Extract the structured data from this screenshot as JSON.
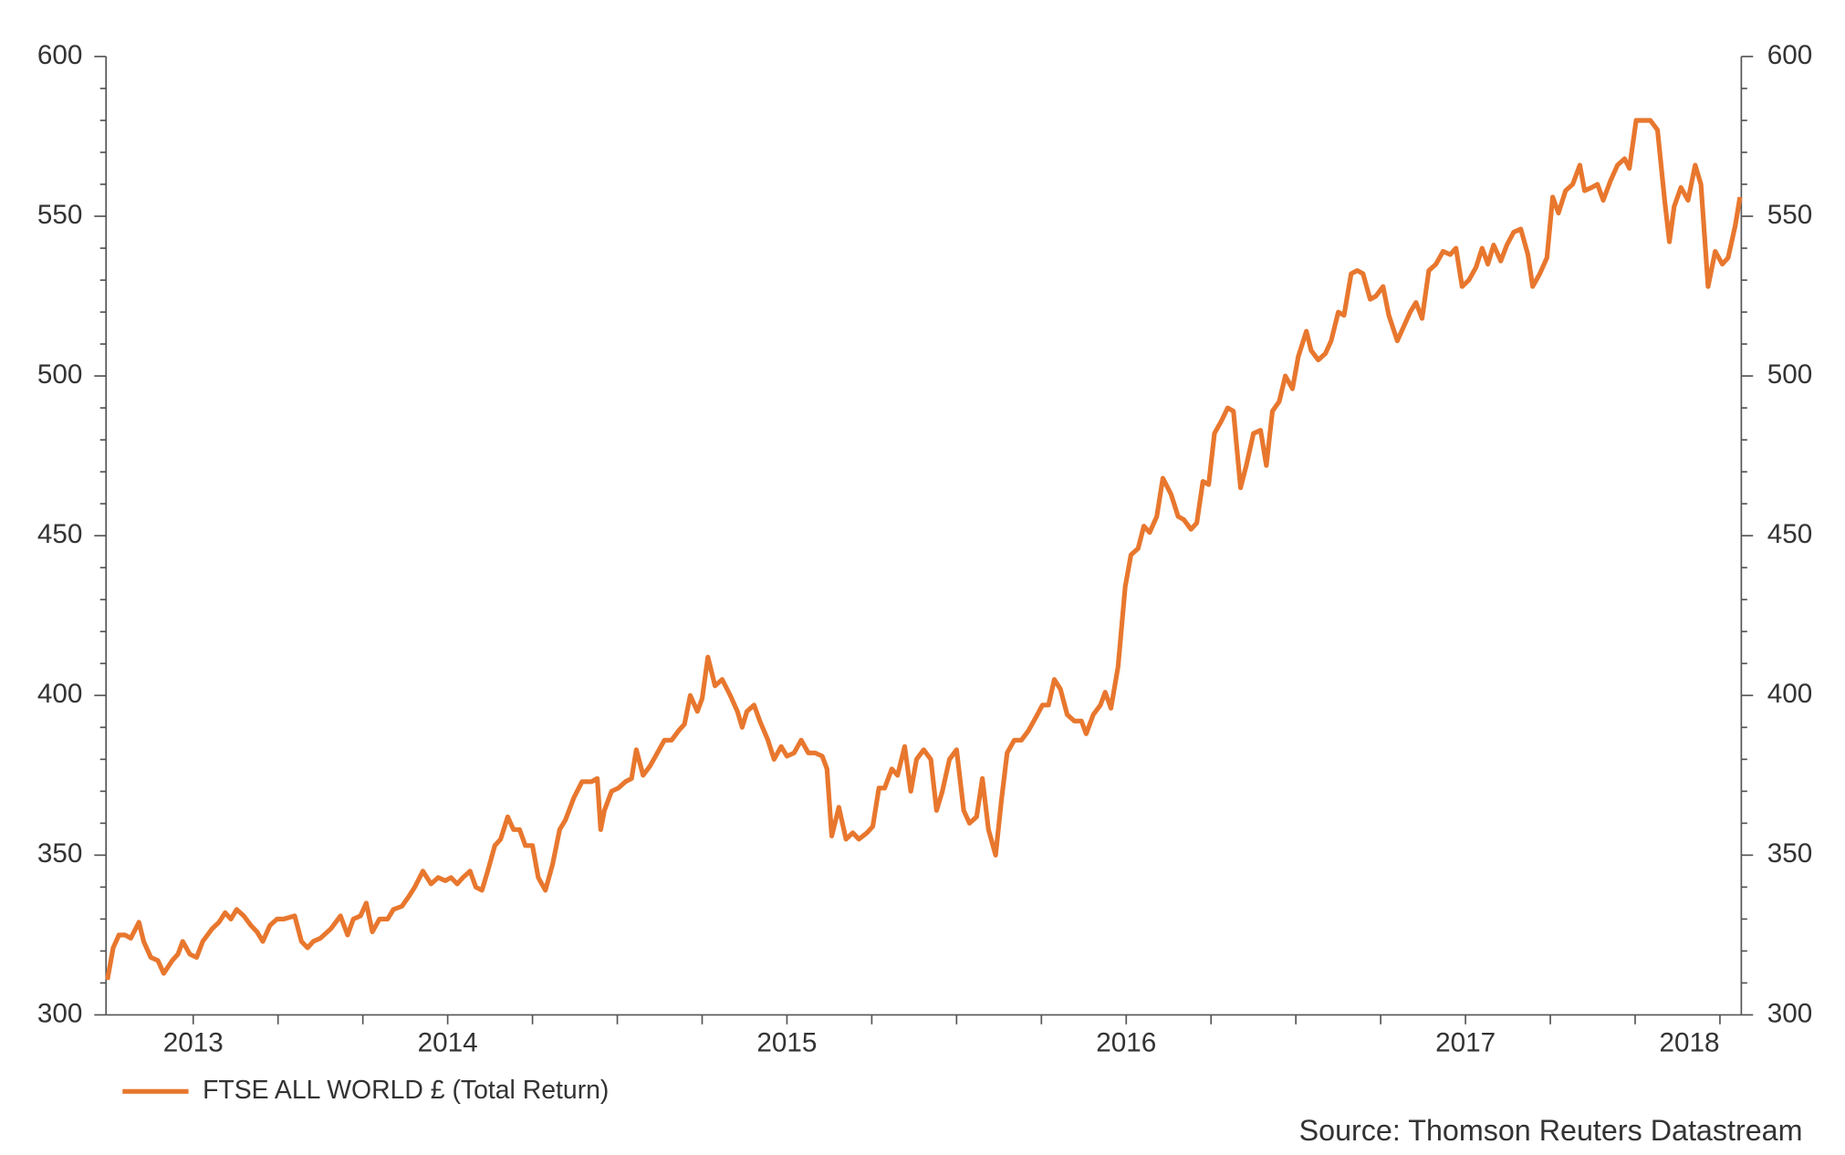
{
  "chart_data": {
    "type": "line",
    "x": [
      2013.497,
      2013.514,
      2013.531,
      2013.549,
      2013.566,
      2013.59,
      2013.604,
      2013.625,
      2013.646,
      2013.663,
      2013.688,
      2013.705,
      2013.719,
      2013.74,
      2013.76,
      2013.778,
      2013.806,
      2013.826,
      2013.844,
      2013.861,
      2013.878,
      2013.899,
      2013.92,
      2013.938,
      2013.955,
      2013.976,
      2013.997,
      2014.017,
      2014.049,
      2014.069,
      2014.087,
      2014.104,
      2014.125,
      2014.156,
      2014.184,
      2014.205,
      2014.222,
      2014.243,
      2014.26,
      2014.278,
      2014.299,
      2014.323,
      2014.34,
      2014.365,
      2014.385,
      2014.403,
      2014.427,
      2014.451,
      2014.472,
      2014.493,
      2014.51,
      2014.528,
      2014.545,
      2014.566,
      2014.583,
      2014.601,
      2014.618,
      2014.639,
      2014.656,
      2014.677,
      2014.694,
      2014.712,
      2014.729,
      2014.75,
      2014.767,
      2014.788,
      2014.809,
      2014.83,
      2014.847,
      2014.872,
      2014.896,
      2014.924,
      2014.941,
      2014.951,
      2014.962,
      2014.983,
      2015.003,
      2015.024,
      2015.042,
      2015.056,
      2015.076,
      2015.097,
      2015.118,
      2015.139,
      2015.16,
      2015.181,
      2015.198,
      2015.215,
      2015.236,
      2015.25,
      2015.267,
      2015.288,
      2015.309,
      2015.333,
      2015.354,
      2015.368,
      2015.382,
      2015.403,
      2015.42,
      2015.444,
      2015.462,
      2015.483,
      2015.5,
      2015.521,
      2015.542,
      2015.563,
      2015.583,
      2015.604,
      2015.618,
      2015.632,
      2015.653,
      2015.674,
      2015.694,
      2015.712,
      2015.736,
      2015.753,
      2015.771,
      2015.788,
      2015.809,
      2015.826,
      2015.847,
      2015.865,
      2015.882,
      2015.903,
      2015.924,
      2015.941,
      2015.958,
      2015.979,
      2016.0,
      2016.021,
      2016.038,
      2016.059,
      2016.076,
      2016.094,
      2016.115,
      2016.132,
      2016.149,
      2016.17,
      2016.191,
      2016.212,
      2016.233,
      2016.253,
      2016.271,
      2016.288,
      2016.306,
      2016.326,
      2016.347,
      2016.368,
      2016.382,
      2016.403,
      2016.424,
      2016.438,
      2016.455,
      2016.476,
      2016.497,
      2016.514,
      2016.535,
      2016.552,
      2016.569,
      2016.59,
      2016.608,
      2016.632,
      2016.653,
      2016.67,
      2016.691,
      2016.708,
      2016.726,
      2016.743,
      2016.76,
      2016.781,
      2016.799,
      2016.816,
      2016.837,
      2016.854,
      2016.875,
      2016.896,
      2016.913,
      2016.931,
      2016.951,
      2016.969,
      2016.99,
      2017.007,
      2017.031,
      2017.045,
      2017.066,
      2017.087,
      2017.104,
      2017.125,
      2017.142,
      2017.163,
      2017.181,
      2017.198,
      2017.219,
      2017.236,
      2017.257,
      2017.274,
      2017.299,
      2017.316,
      2017.337,
      2017.354,
      2017.372,
      2017.392,
      2017.413,
      2017.434,
      2017.455,
      2017.472,
      2017.49,
      2017.51,
      2017.531,
      2017.549,
      2017.566,
      2017.583,
      2017.604,
      2017.622,
      2017.642,
      2017.663,
      2017.684,
      2017.698,
      2017.719,
      2017.74,
      2017.757,
      2017.774,
      2017.795,
      2017.816,
      2017.837,
      2017.851,
      2017.872,
      2017.889,
      2017.906,
      2017.927,
      2017.948,
      2017.969,
      2017.983,
      2018.003,
      2018.024,
      2018.045,
      2018.066,
      2018.087,
      2018.101,
      2018.115,
      2018.135,
      2018.156,
      2018.177,
      2018.194,
      2018.215,
      2018.236,
      2018.257,
      2018.274,
      2018.295,
      2018.309
    ],
    "series": [
      {
        "name": "FTSE ALL WORLD £ (Total Return)",
        "color": "#e8772e",
        "values": [
          311,
          321,
          325,
          325,
          324,
          329,
          323,
          318,
          317,
          313,
          317,
          319,
          323,
          319,
          318,
          323,
          327,
          329,
          332,
          330,
          333,
          331,
          328,
          326,
          323,
          328,
          330,
          330,
          331,
          323,
          321,
          323,
          324,
          327,
          331,
          325,
          330,
          331,
          335,
          326,
          330,
          330,
          333,
          334,
          337,
          340,
          345,
          341,
          343,
          342,
          343,
          341,
          343,
          345,
          340,
          339,
          345,
          353,
          355,
          362,
          358,
          358,
          353,
          353,
          343,
          339,
          347,
          358,
          361,
          368,
          373,
          373,
          374,
          358,
          364,
          370,
          371,
          373,
          374,
          383,
          375,
          378,
          382,
          386,
          386,
          389,
          391,
          400,
          395,
          399,
          412,
          403,
          405,
          400,
          395,
          390,
          395,
          397,
          392,
          386,
          380,
          384,
          381,
          382,
          386,
          382,
          382,
          381,
          377,
          356,
          365,
          355,
          357,
          355,
          357,
          359,
          371,
          371,
          377,
          375,
          384,
          370,
          380,
          383,
          380,
          364,
          370,
          380,
          383,
          364,
          360,
          362,
          374,
          358,
          350,
          367,
          382,
          386,
          386,
          389,
          393,
          397,
          397,
          405,
          402,
          394,
          392,
          392,
          388,
          394,
          397,
          401,
          396,
          409,
          434,
          444,
          446,
          453,
          451,
          456,
          468,
          463,
          456,
          455,
          452,
          454,
          467,
          466,
          482,
          486,
          490,
          489,
          465,
          472,
          482,
          483,
          472,
          489,
          492,
          500,
          496,
          506,
          514,
          508,
          505,
          507,
          511,
          520,
          519,
          532,
          533,
          532,
          524,
          525,
          528,
          519,
          511,
          515,
          520,
          523,
          518,
          533,
          535,
          539,
          538,
          540,
          528,
          530,
          534,
          540,
          535,
          541,
          536,
          541,
          545,
          546,
          538,
          528,
          532,
          537,
          556,
          551,
          558,
          560,
          566,
          558,
          559,
          560,
          555,
          561,
          566,
          568,
          565,
          580,
          580,
          580,
          577,
          555,
          542,
          553,
          559,
          555,
          566,
          560,
          528,
          539,
          535,
          537,
          547,
          556
        ]
      }
    ],
    "xlim": [
      2013.493,
      2018.313
    ],
    "xticks": [
      2013.75,
      2014,
      2014.25,
      2014.5,
      2014.75,
      2015,
      2015.25,
      2015.5,
      2015.75,
      2016,
      2016.25,
      2016.5,
      2016.75,
      2017,
      2017.25,
      2017.5,
      2017.75,
      2018,
      2018.25
    ],
    "x_labels": [
      {
        "value": 2013.75,
        "label": "2013"
      },
      {
        "value": 2014.5,
        "label": "2014"
      },
      {
        "value": 2015.5,
        "label": "2015"
      },
      {
        "value": 2016.5,
        "label": "2016"
      },
      {
        "value": 2017.5,
        "label": "2017"
      },
      {
        "value": 2018.16,
        "label": "2018"
      }
    ],
    "ylim": [
      300,
      600
    ],
    "yticks": [
      300,
      350,
      400,
      450,
      500,
      550,
      600
    ],
    "y2lim": [
      300,
      600
    ],
    "y2ticks": [
      300,
      350,
      400,
      450,
      500,
      550,
      600
    ],
    "y_minor_ticks": [
      310,
      320,
      330,
      340,
      360,
      370,
      380,
      390,
      410,
      420,
      430,
      440,
      460,
      470,
      480,
      490,
      510,
      520,
      530,
      540,
      560,
      570,
      580,
      590
    ],
    "legend": "bottom-left",
    "source": "Source: Thomson Reuters Datastream"
  }
}
